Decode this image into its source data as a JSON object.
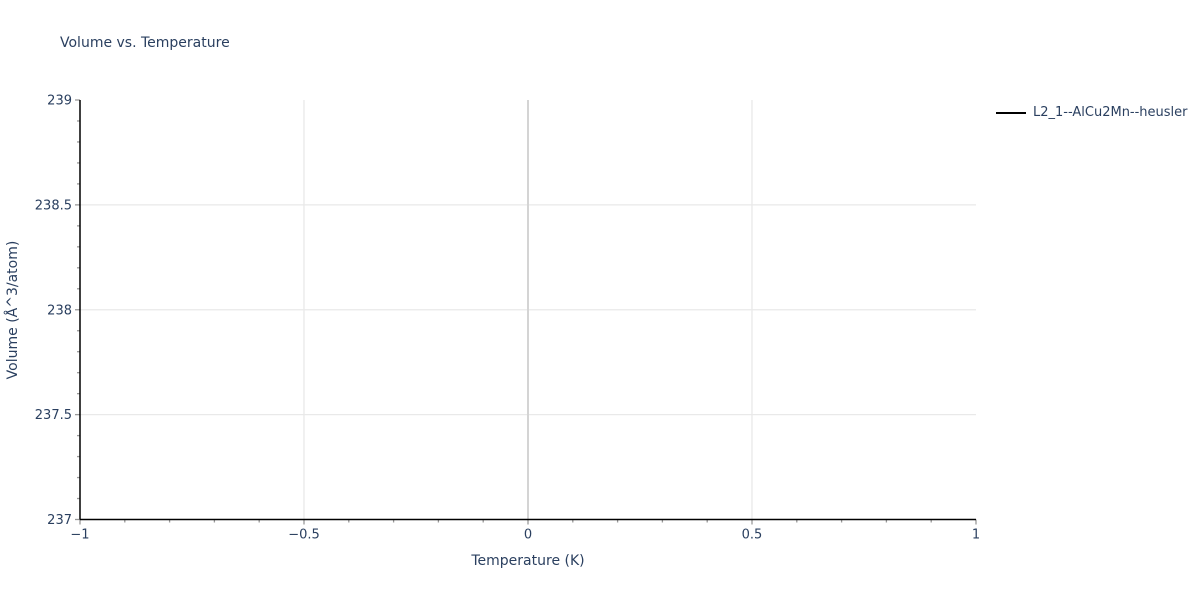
{
  "chart_data": {
    "type": "line",
    "title": "Volume vs. Temperature",
    "xlabel": "Temperature (K)",
    "ylabel": "Volume (Å^3/atom)",
    "xlim": [
      -1,
      1
    ],
    "ylim": [
      237,
      239
    ],
    "x_major_ticks": [
      -1,
      -0.5,
      0,
      0.5,
      1
    ],
    "x_minor_step": 0.1,
    "y_major_ticks": [
      237,
      237.5,
      238,
      238.5,
      239
    ],
    "y_minor_step": 0.1,
    "x_gridlines": [
      -0.5,
      0.5
    ],
    "x_zeroline": 0,
    "y_gridlines": [
      237.5,
      238,
      238.5
    ],
    "grid": true,
    "legend_position": "top-right",
    "series": [
      {
        "name": "L2_1--AlCu2Mn--heusler",
        "color": "#000000",
        "x": [],
        "y": []
      }
    ]
  },
  "colors": {
    "background": "#ffffff",
    "text": "#2a3f5f",
    "axis_line": "#000000",
    "tick": "#999999",
    "gridline": "#e9e9e9",
    "zeroline": "#d4d4d4",
    "legend_line": "#000000"
  }
}
